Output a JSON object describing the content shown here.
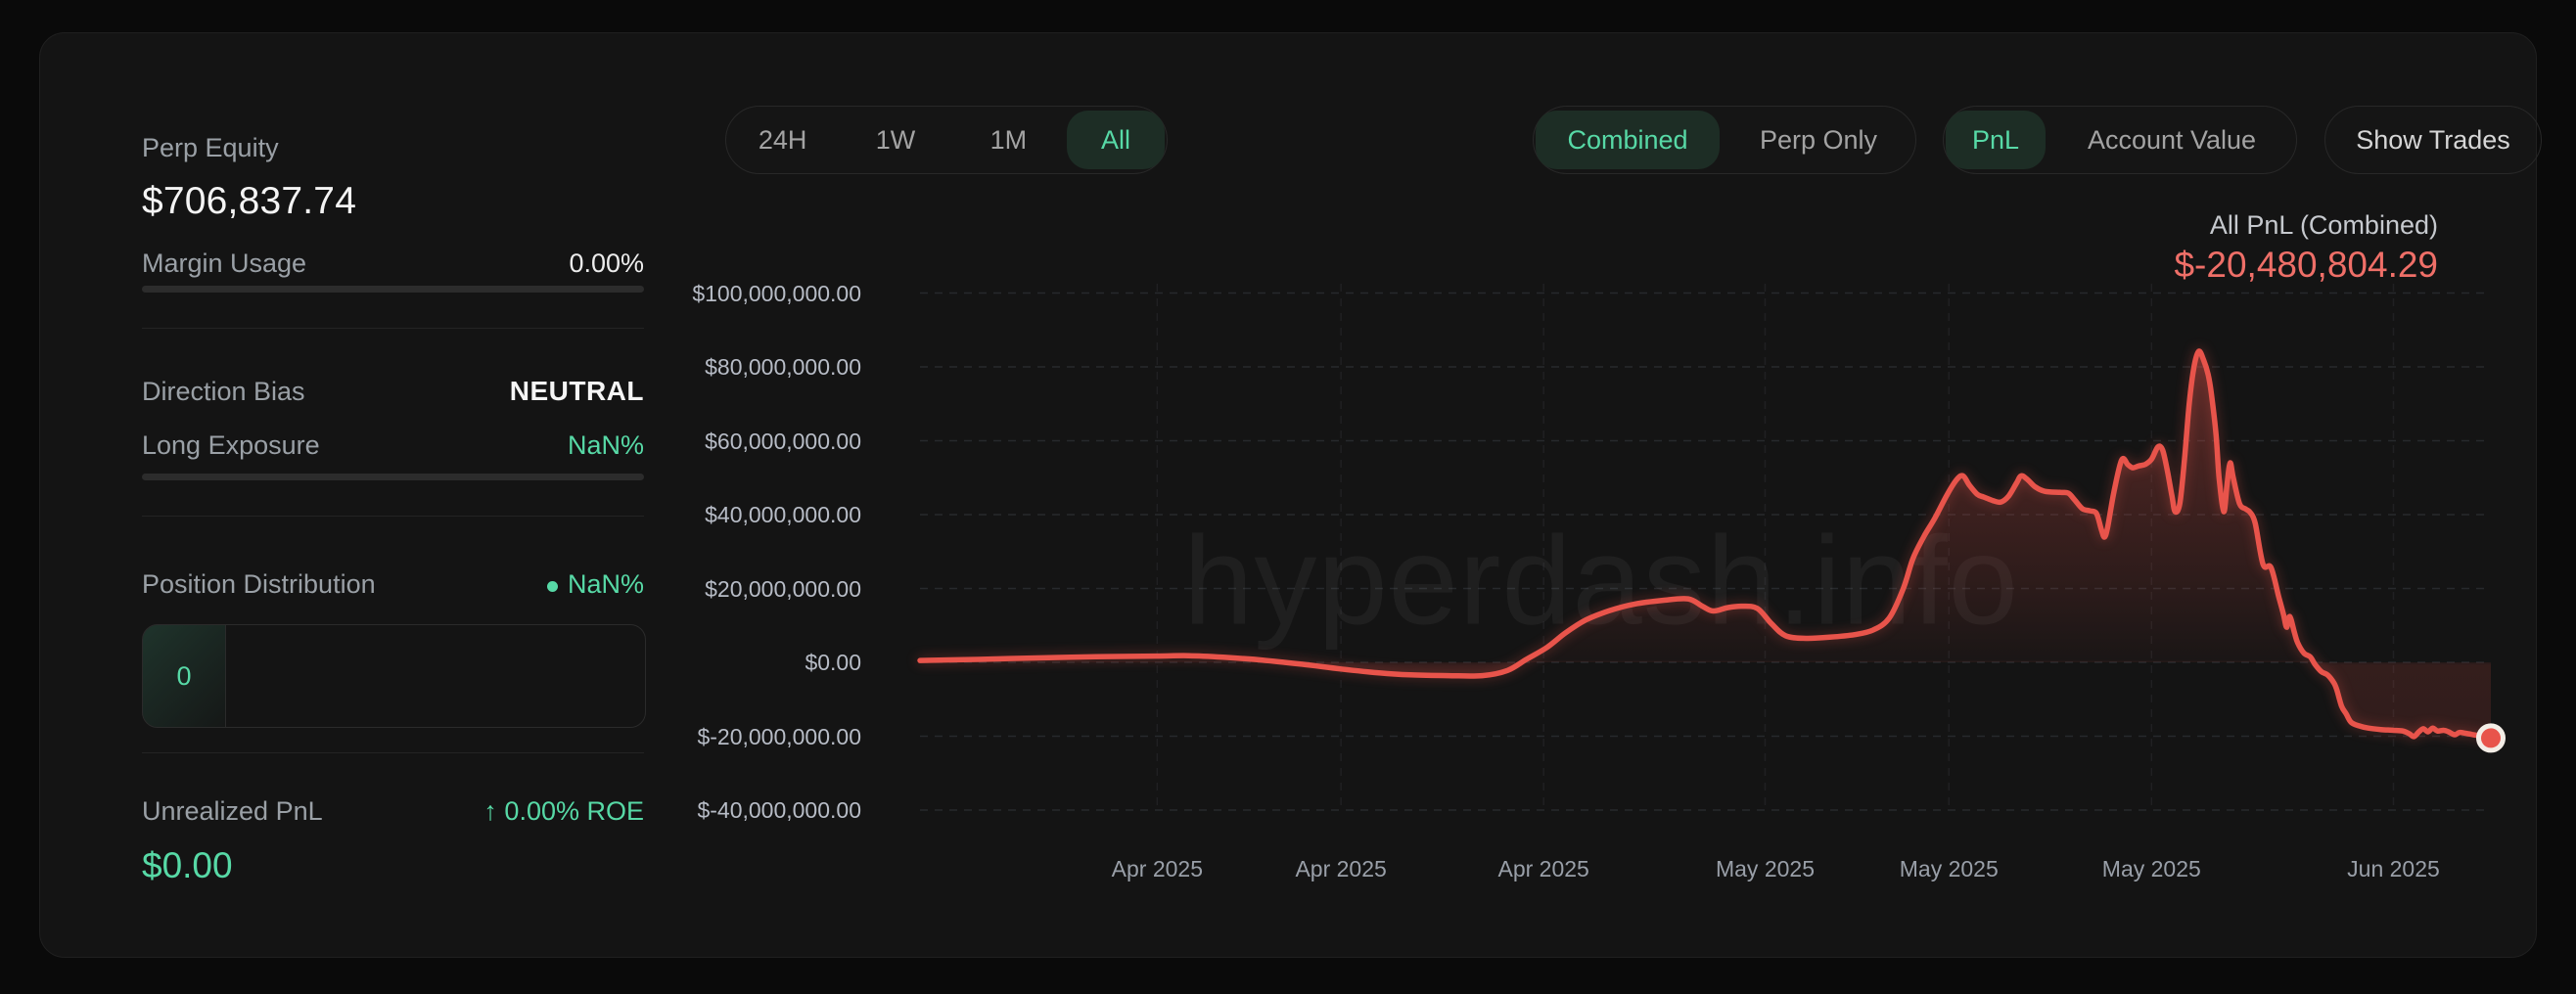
{
  "page": {
    "watermark": "hyperdash.info"
  },
  "colors": {
    "accent_green": "#57d9a6",
    "selected_pill_bg": "#1d2d25",
    "accent_red": "#e8544b",
    "value_red": "#ef6f68"
  },
  "sidebar": {
    "perp_equity_label": "Perp Equity",
    "perp_equity_value": "$706,837.74",
    "margin_usage_label": "Margin Usage",
    "margin_usage_value": "0.00%",
    "direction_bias_label": "Direction Bias",
    "direction_bias_value": "NEUTRAL",
    "long_exposure_label": "Long Exposure",
    "long_exposure_value": "NaN%",
    "position_distribution_label": "Position Distribution",
    "position_distribution_value": "NaN%",
    "position_distribution_box_value": "0",
    "unrealized_pnl_label": "Unrealized PnL",
    "unrealized_pnl_roe": "↑ 0.00% ROE",
    "unrealized_pnl_value": "$0.00"
  },
  "toolbar": {
    "time_ranges": [
      {
        "label": "24H",
        "selected": false
      },
      {
        "label": "1W",
        "selected": false
      },
      {
        "label": "1M",
        "selected": false
      },
      {
        "label": "All",
        "selected": true
      }
    ],
    "mode": [
      {
        "label": "Combined",
        "selected": true
      },
      {
        "label": "Perp Only",
        "selected": false
      }
    ],
    "view": [
      {
        "label": "PnL",
        "selected": true
      },
      {
        "label": "Account Value",
        "selected": false
      }
    ],
    "show_trades_label": "Show Trades"
  },
  "chart_header": {
    "label": "All PnL (Combined)",
    "value": "$-20,480,804.29"
  },
  "chart_data": {
    "type": "area",
    "title": "All PnL (Combined)",
    "unit": "USD",
    "final_value_usd": -20480804.29,
    "ylim_million_usd": [
      -48,
      108
    ],
    "grid": "dashed horizontal at each y tick, dashed vertical at each x tick",
    "y_ticks": [
      {
        "label": "$100,000,000.00",
        "value_musd": 100
      },
      {
        "label": "$80,000,000.00",
        "value_musd": 80
      },
      {
        "label": "$60,000,000.00",
        "value_musd": 60
      },
      {
        "label": "$40,000,000.00",
        "value_musd": 40
      },
      {
        "label": "$20,000,000.00",
        "value_musd": 20
      },
      {
        "label": "$0.00",
        "value_musd": 0
      },
      {
        "label": "$-20,000,000.00",
        "value_musd": -20
      },
      {
        "label": "$-40,000,000.00",
        "value_musd": -40
      }
    ],
    "x_ticks": [
      {
        "label": "Apr 2025",
        "pos": 0.151
      },
      {
        "label": "Apr 2025",
        "pos": 0.268
      },
      {
        "label": "Apr 2025",
        "pos": 0.397
      },
      {
        "label": "May 2025",
        "pos": 0.538
      },
      {
        "label": "May 2025",
        "pos": 0.655
      },
      {
        "label": "May 2025",
        "pos": 0.784
      },
      {
        "label": "Jun 2025",
        "pos": 0.938
      }
    ],
    "points_x_fraction_value_musd": [
      [
        0.0,
        0.5
      ],
      [
        0.037,
        0.8
      ],
      [
        0.075,
        1.2
      ],
      [
        0.112,
        1.5
      ],
      [
        0.15,
        1.7
      ],
      [
        0.171,
        1.8
      ],
      [
        0.193,
        1.4
      ],
      [
        0.218,
        0.6
      ],
      [
        0.243,
        -0.5
      ],
      [
        0.268,
        -1.8
      ],
      [
        0.293,
        -2.9
      ],
      [
        0.312,
        -3.4
      ],
      [
        0.336,
        -3.6
      ],
      [
        0.358,
        -3.6
      ],
      [
        0.374,
        -2.2
      ],
      [
        0.386,
        0.8
      ],
      [
        0.399,
        4.0
      ],
      [
        0.411,
        8.0
      ],
      [
        0.424,
        11.5
      ],
      [
        0.439,
        14.0
      ],
      [
        0.455,
        15.8
      ],
      [
        0.473,
        16.8
      ],
      [
        0.489,
        17.2
      ],
      [
        0.498,
        15.2
      ],
      [
        0.505,
        13.9
      ],
      [
        0.514,
        14.8
      ],
      [
        0.523,
        15.2
      ],
      [
        0.533,
        14.6
      ],
      [
        0.542,
        10.5
      ],
      [
        0.551,
        7.2
      ],
      [
        0.564,
        6.5
      ],
      [
        0.579,
        6.8
      ],
      [
        0.595,
        7.5
      ],
      [
        0.607,
        8.8
      ],
      [
        0.617,
        12.0
      ],
      [
        0.626,
        20.0
      ],
      [
        0.632,
        28.0
      ],
      [
        0.639,
        34.0
      ],
      [
        0.646,
        39.0
      ],
      [
        0.654,
        45.5
      ],
      [
        0.66,
        49.5
      ],
      [
        0.664,
        50.5
      ],
      [
        0.668,
        48.0
      ],
      [
        0.673,
        45.5
      ],
      [
        0.677,
        44.8
      ],
      [
        0.683,
        43.8
      ],
      [
        0.688,
        43.4
      ],
      [
        0.693,
        45.0
      ],
      [
        0.698,
        48.5
      ],
      [
        0.701,
        50.5
      ],
      [
        0.705,
        49.5
      ],
      [
        0.71,
        47.5
      ],
      [
        0.716,
        46.3
      ],
      [
        0.726,
        46.0
      ],
      [
        0.731,
        45.8
      ],
      [
        0.735,
        44.0
      ],
      [
        0.74,
        41.6
      ],
      [
        0.745,
        41.0
      ],
      [
        0.749,
        40.3
      ],
      [
        0.752,
        36.0
      ],
      [
        0.754,
        33.9
      ],
      [
        0.756,
        36.5
      ],
      [
        0.76,
        46.0
      ],
      [
        0.765,
        54.8
      ],
      [
        0.769,
        53.5
      ],
      [
        0.772,
        52.7
      ],
      [
        0.776,
        53.2
      ],
      [
        0.78,
        53.6
      ],
      [
        0.784,
        55.0
      ],
      [
        0.788,
        58.3
      ],
      [
        0.791,
        57.5
      ],
      [
        0.794,
        52.0
      ],
      [
        0.797,
        45.0
      ],
      [
        0.799,
        40.8
      ],
      [
        0.802,
        43.0
      ],
      [
        0.805,
        55.0
      ],
      [
        0.808,
        70.0
      ],
      [
        0.811,
        80.0
      ],
      [
        0.814,
        84.2
      ],
      [
        0.817,
        82.0
      ],
      [
        0.82,
        78.0
      ],
      [
        0.822,
        73.0
      ],
      [
        0.825,
        62.0
      ],
      [
        0.827,
        50.0
      ],
      [
        0.83,
        40.8
      ],
      [
        0.832,
        48.0
      ],
      [
        0.834,
        54.0
      ],
      [
        0.836,
        50.0
      ],
      [
        0.84,
        43.0
      ],
      [
        0.844,
        41.5
      ],
      [
        0.847,
        40.5
      ],
      [
        0.85,
        37.6
      ],
      [
        0.855,
        26.5
      ],
      [
        0.86,
        25.7
      ],
      [
        0.865,
        17.7
      ],
      [
        0.868,
        13.0
      ],
      [
        0.87,
        9.5
      ],
      [
        0.872,
        12.4
      ],
      [
        0.875,
        8.0
      ],
      [
        0.877,
        5.3
      ],
      [
        0.881,
        2.5
      ],
      [
        0.885,
        1.5
      ],
      [
        0.888,
        -0.5
      ],
      [
        0.892,
        -2.5
      ],
      [
        0.896,
        -3.4
      ],
      [
        0.9,
        -5.5
      ],
      [
        0.902,
        -7.5
      ],
      [
        0.905,
        -11.9
      ],
      [
        0.908,
        -14.0
      ],
      [
        0.911,
        -16.2
      ],
      [
        0.916,
        -17.2
      ],
      [
        0.922,
        -17.8
      ],
      [
        0.93,
        -18.2
      ],
      [
        0.938,
        -18.4
      ],
      [
        0.944,
        -18.6
      ],
      [
        0.948,
        -19.3
      ],
      [
        0.951,
        -20.1
      ],
      [
        0.954,
        -18.9
      ],
      [
        0.957,
        -18.0
      ],
      [
        0.96,
        -18.8
      ],
      [
        0.963,
        -17.8
      ],
      [
        0.966,
        -18.6
      ],
      [
        0.97,
        -18.4
      ],
      [
        0.973,
        -18.8
      ],
      [
        0.977,
        -19.6
      ],
      [
        0.98,
        -19.0
      ],
      [
        0.984,
        -19.2
      ],
      [
        0.989,
        -19.6
      ],
      [
        0.994,
        -20.0
      ],
      [
        1.0,
        -20.5
      ]
    ]
  }
}
